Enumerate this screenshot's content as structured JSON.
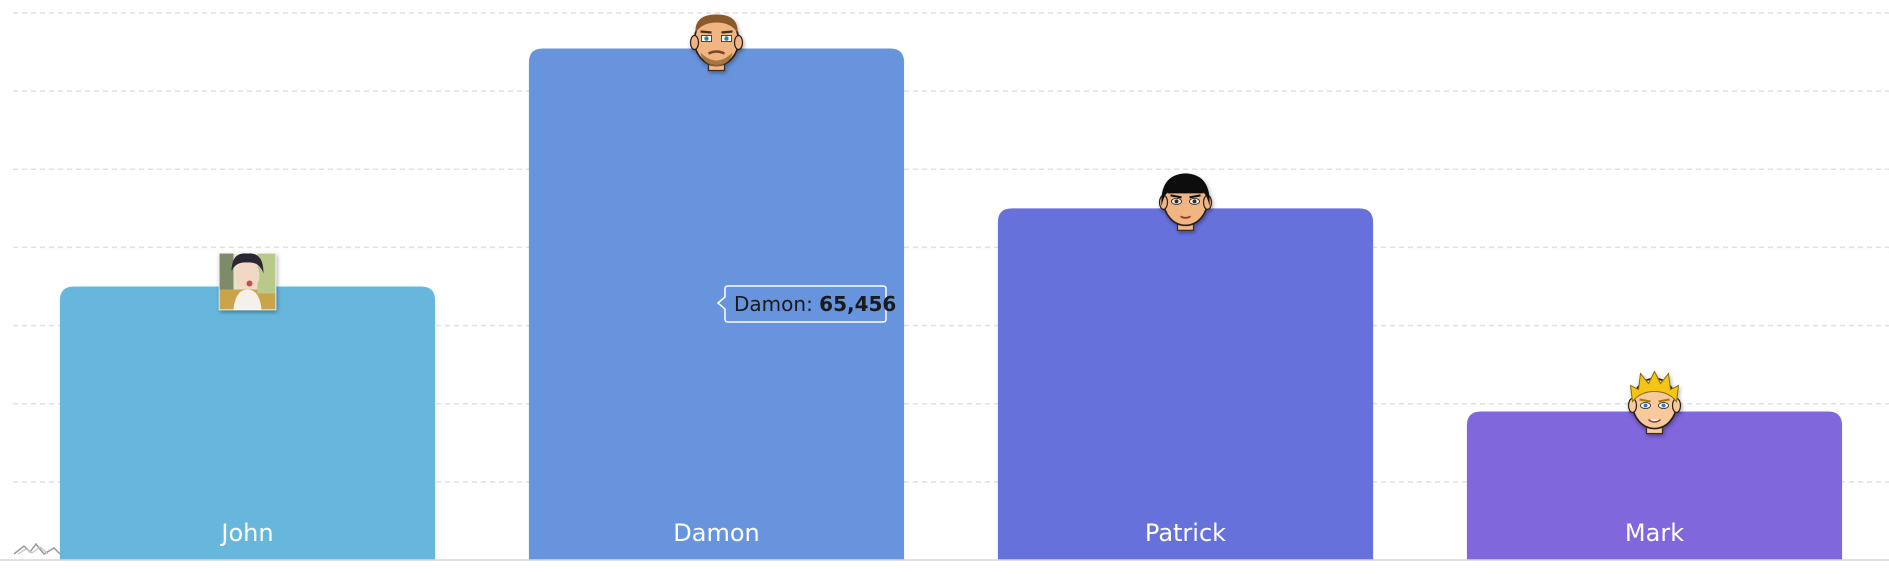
{
  "chart_data": {
    "type": "bar",
    "categories": [
      "John",
      "Damon",
      "Patrick",
      "Mark"
    ],
    "values": [
      35000,
      65456,
      45000,
      19000
    ],
    "ylim": [
      0,
      70000
    ],
    "grid": true,
    "colors": [
      "#67b7dc",
      "#6794dc",
      "#6771dc",
      "#8067dc"
    ],
    "avatar_icons": [
      "john-photo-icon",
      "damon-bearded-face-icon",
      "patrick-black-hair-face-icon",
      "mark-blond-face-icon"
    ],
    "tooltip": {
      "category": "Damon",
      "separator": ": ",
      "value": "65,456"
    }
  }
}
